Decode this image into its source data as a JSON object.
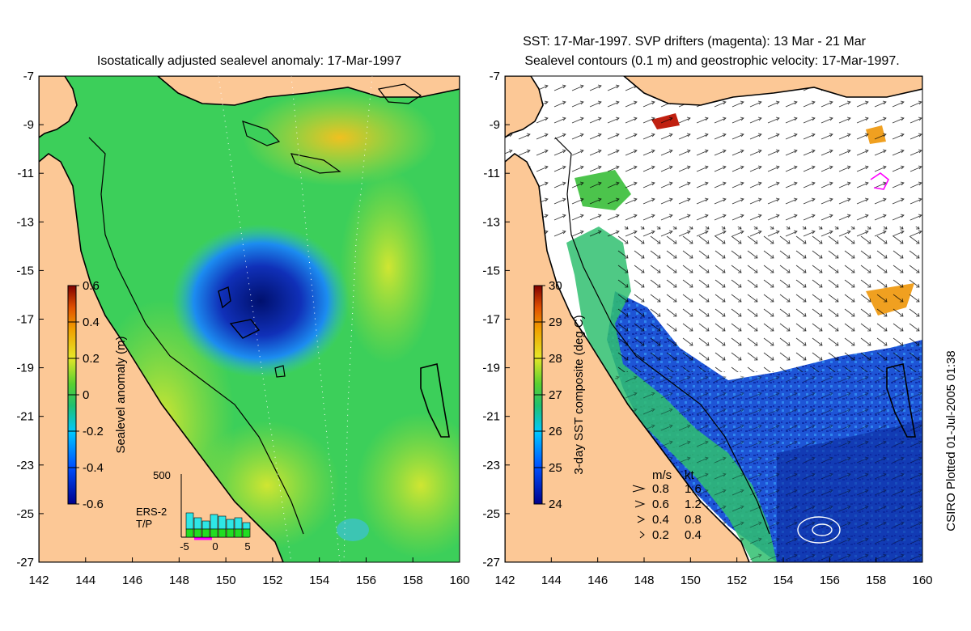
{
  "left_panel": {
    "title": "Isostatically adjusted sealevel anomaly: 17-Mar-1997",
    "colorbar": {
      "label": "Sealevel anomaly (m)",
      "ticks": [
        "0.6",
        "0.4",
        "0.2",
        "0",
        "-0.2",
        "-0.4",
        "-0.6"
      ]
    },
    "histogram": {
      "ymax_label": "500",
      "x_ticks": [
        "-5",
        "0",
        "5"
      ],
      "legend": [
        "ERS-2",
        "T/P"
      ],
      "legend_colors": [
        "#2ee6e6",
        "#22dd22"
      ]
    }
  },
  "right_panel": {
    "title_line1": "SST: 17-Mar-1997. SVP drifters (magenta): 13 Mar - 21 Mar",
    "title_line2": "Sealevel contours (0.1 m) and geostrophic velocity: 17-Mar-1997.",
    "colorbar": {
      "label": "3-day SST composite (deg C)",
      "ticks": [
        "30",
        "29",
        "28",
        "27",
        "26",
        "25",
        "24"
      ]
    },
    "velocity_legend": {
      "headers": [
        "m/s",
        "kt"
      ],
      "rows": [
        [
          "0.8",
          "1.6"
        ],
        [
          "0.6",
          "1.2"
        ],
        [
          "0.4",
          "0.8"
        ],
        [
          "0.2",
          "0.4"
        ]
      ]
    }
  },
  "axes": {
    "y_ticks": [
      "-7",
      "-9",
      "-11",
      "-13",
      "-15",
      "-17",
      "-19",
      "-21",
      "-23",
      "-25",
      "-27"
    ],
    "x_ticks": [
      "142",
      "144",
      "146",
      "148",
      "150",
      "152",
      "154",
      "156",
      "158",
      "160"
    ]
  },
  "credit": "CSIRO Plotted 01-Jul-2005 01:38",
  "colors": {
    "land": "#fcc896",
    "sea_green": "#3ccf5a",
    "sea_yellow": "#c8e628",
    "low_blue": "#0a2a9c",
    "sst_blue": "#1a4fd0",
    "drifter": "#ff00ff"
  }
}
